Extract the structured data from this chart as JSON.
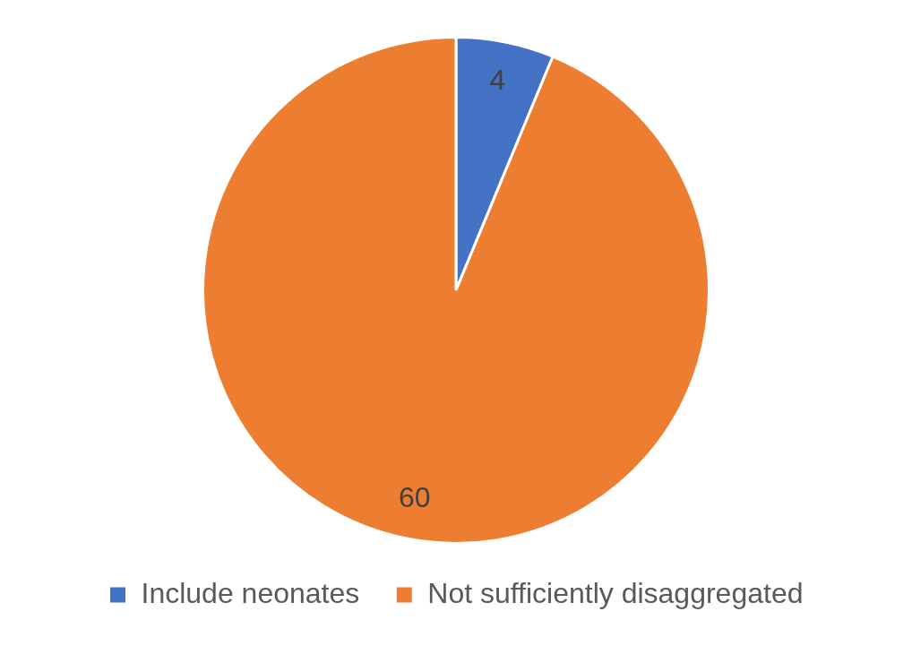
{
  "chart_data": {
    "type": "pie",
    "categories": [
      "Include neonates",
      "Not sufficiently disaggregated"
    ],
    "values": [
      4,
      60
    ],
    "colors": [
      "#4472c4",
      "#ed7d31"
    ],
    "data_labels": true,
    "legend": "bottom"
  }
}
